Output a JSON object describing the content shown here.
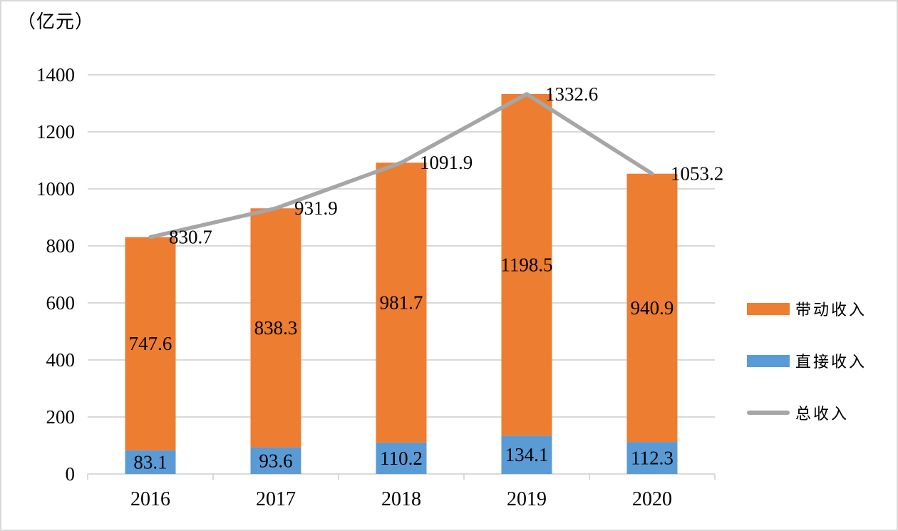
{
  "unit_label": "（亿元）",
  "colors": {
    "bar_driven": "#ED7D31",
    "bar_direct": "#5B9BD5",
    "line_total": "#A6A6A6",
    "gridline": "#D9D9D9",
    "axis": "#D9D9D9",
    "label_text": "#000000",
    "background": "#FFFFFF",
    "border": "#D9D9D9"
  },
  "legend": {
    "items": [
      {
        "label": "带动收入",
        "swatch": "bar",
        "color": "#ED7D31"
      },
      {
        "label": "直接收入",
        "swatch": "bar",
        "color": "#5B9BD5"
      },
      {
        "label": "总收入",
        "swatch": "line",
        "color": "#A6A6A6"
      }
    ]
  },
  "chart_data": {
    "type": "bar",
    "subtype": "stacked-bar-with-line",
    "title": "",
    "xlabel": "",
    "ylabel": "（亿元）",
    "categories": [
      "2016",
      "2017",
      "2018",
      "2019",
      "2020"
    ],
    "series": [
      {
        "name": "直接收入",
        "type": "bar",
        "color": "#5B9BD5",
        "values": [
          83.1,
          93.6,
          110.2,
          134.1,
          112.3
        ]
      },
      {
        "name": "带动收入",
        "type": "bar",
        "color": "#ED7D31",
        "values": [
          747.6,
          838.3,
          981.7,
          1198.5,
          940.9
        ]
      },
      {
        "name": "总收入",
        "type": "line",
        "color": "#A6A6A6",
        "values": [
          830.7,
          931.9,
          1091.9,
          1332.6,
          1053.2
        ]
      }
    ],
    "ylim": [
      0,
      1400
    ],
    "yticks": [
      0,
      200,
      400,
      600,
      800,
      1000,
      1200,
      1400
    ],
    "grid": true,
    "legend_position": "right",
    "data_labels": true
  }
}
